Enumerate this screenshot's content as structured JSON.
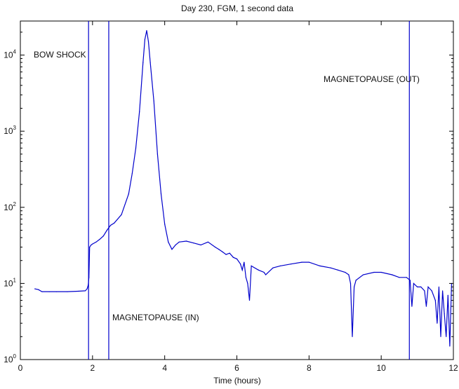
{
  "chart_data": {
    "type": "line",
    "title": "Day 230, FGM, 1 second data",
    "xlabel": "Time (hours)",
    "ylabel": "",
    "xlim": [
      0,
      12
    ],
    "ylim": [
      1,
      28000
    ],
    "yscale": "log",
    "grid": false,
    "x_ticks": [
      "0",
      "2",
      "4",
      "6",
      "8",
      "10",
      "12"
    ],
    "y_ticks": [
      {
        "base": "10",
        "exp": "0"
      },
      {
        "base": "10",
        "exp": "1"
      },
      {
        "base": "10",
        "exp": "2"
      },
      {
        "base": "10",
        "exp": "3"
      },
      {
        "base": "10",
        "exp": "4"
      }
    ],
    "line_color": "#0000cc",
    "series": [
      {
        "x": [
          0.4,
          0.5,
          0.6,
          0.8,
          1.0,
          1.3,
          1.6,
          1.8,
          1.85,
          1.88,
          1.9,
          1.92,
          1.96,
          2.0,
          2.1,
          2.2,
          2.3,
          2.4,
          2.5,
          2.6,
          2.8,
          3.0,
          3.1,
          3.2,
          3.3,
          3.4,
          3.45,
          3.5,
          3.55,
          3.6,
          3.7,
          3.8,
          3.9,
          4.0,
          4.1,
          4.2,
          4.3,
          4.4,
          4.6,
          4.8,
          5.0,
          5.2,
          5.4,
          5.5,
          5.6,
          5.7,
          5.8,
          5.9,
          6.0,
          6.1,
          6.15,
          6.2,
          6.25,
          6.3,
          6.35,
          6.4,
          6.6,
          6.75,
          6.8,
          7.0,
          7.2,
          7.5,
          7.8,
          8.0,
          8.3,
          8.6,
          8.8,
          9.0,
          9.1,
          9.15,
          9.2,
          9.25,
          9.3,
          9.5,
          9.8,
          10.0,
          10.3,
          10.5,
          10.7,
          10.8,
          10.85,
          10.9,
          11.0,
          11.1,
          11.2,
          11.25,
          11.3,
          11.4,
          11.5,
          11.55,
          11.6,
          11.65,
          11.7,
          11.75,
          11.8,
          11.85,
          11.9,
          11.95
        ],
        "y": [
          8.5,
          8.3,
          7.8,
          7.8,
          7.8,
          7.8,
          7.9,
          8.0,
          8.5,
          9.5,
          12,
          30,
          32,
          33,
          35,
          38,
          42,
          50,
          58,
          62,
          80,
          150,
          280,
          600,
          1800,
          8000,
          16000,
          21000,
          15000,
          8000,
          2500,
          500,
          150,
          60,
          35,
          28,
          32,
          35,
          36,
          34,
          32,
          35,
          30,
          28,
          26,
          24,
          25,
          22,
          21,
          18,
          15,
          19,
          12,
          10,
          6,
          17,
          15,
          14,
          13,
          16,
          17,
          18,
          19,
          19,
          17,
          16,
          15,
          14,
          13,
          10,
          2,
          9,
          11,
          13,
          14,
          14,
          13,
          12,
          12,
          11,
          5,
          10,
          9,
          9,
          8,
          5,
          9,
          8,
          6,
          3,
          9,
          2,
          8,
          4,
          2,
          7,
          1.5,
          10
        ]
      }
    ],
    "annotations": [
      "BOW SHOCK",
      "MAGNETOPAUSE (IN)",
      "MAGNETOPAUSE (OUT)"
    ],
    "vertical_lines_hours": [
      1.89,
      2.45,
      10.78
    ]
  }
}
